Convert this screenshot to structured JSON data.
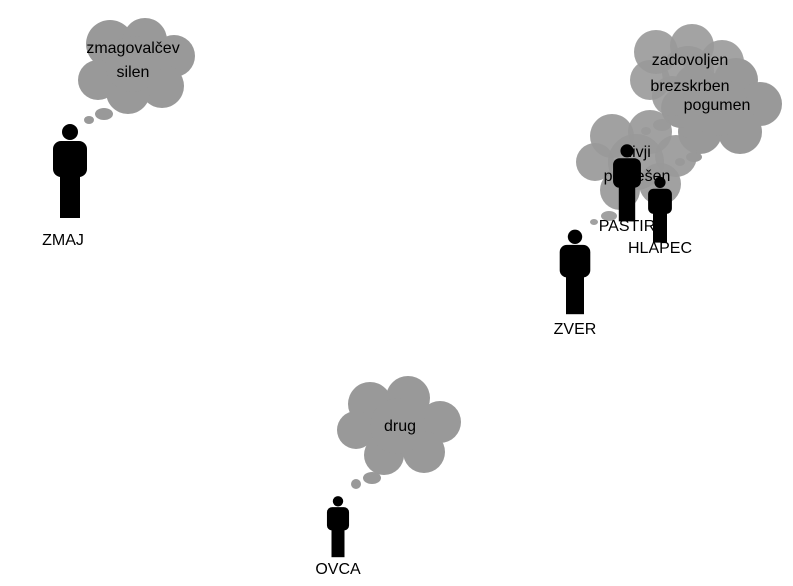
{
  "colors": {
    "background": "#ffffff",
    "cloud": "#999999",
    "figure": "#000000",
    "text": "#000000"
  },
  "characters": [
    {
      "id": "zmaj",
      "name": "ZMAJ",
      "thoughts": [
        "zmagovalčev",
        "silen"
      ]
    },
    {
      "id": "pastir",
      "name": "PASTIR",
      "thoughts": [
        "divji",
        "pogrešen"
      ]
    },
    {
      "id": "hlapec",
      "name": "HLAPEC",
      "thoughts": [
        "zadovoljen",
        "brezskrben",
        "pogumen"
      ]
    },
    {
      "id": "zver",
      "name": "ZVER",
      "thoughts": []
    },
    {
      "id": "ovca",
      "name": "OVCA",
      "thoughts": [
        "drug"
      ]
    }
  ]
}
